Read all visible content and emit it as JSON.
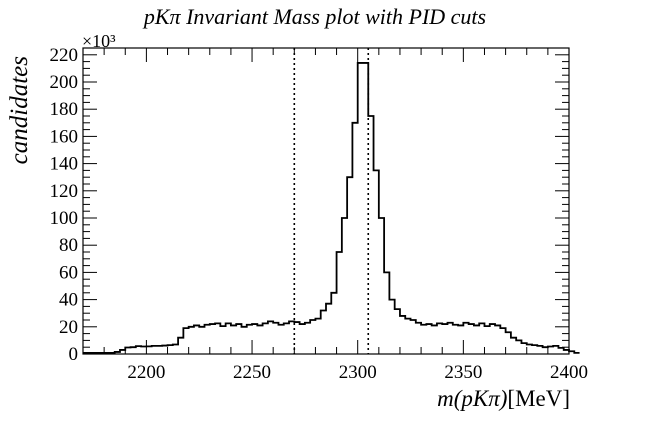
{
  "chart_data": {
    "type": "histogram",
    "title": "pKπ Invariant Mass plot with PID cuts",
    "xlabel": "m(pKπ)[MeV]",
    "xlabel_italic_part": "m(pKπ)",
    "xlabel_unit_part": "[MeV]",
    "ylabel": "candidates",
    "y_multiplier": "×10³",
    "xlim": [
      2170,
      2400
    ],
    "ylim": [
      0,
      225
    ],
    "x_ticks": [
      2200,
      2250,
      2300,
      2350,
      2400
    ],
    "y_ticks": [
      0,
      20,
      40,
      60,
      80,
      100,
      120,
      140,
      160,
      180,
      200,
      220
    ],
    "cut_lines": [
      2270,
      2305
    ],
    "bin_edges_start": 2170,
    "bin_width": 2.5,
    "values": [
      0.8,
      0.8,
      0.8,
      0.8,
      0.8,
      0.8,
      1.5,
      3.0,
      4.8,
      5.0,
      5.8,
      5.5,
      5.6,
      6.0,
      6.0,
      6.2,
      6.5,
      7.0,
      12.0,
      19.0,
      20.0,
      21.0,
      20.0,
      21.5,
      22.0,
      22.5,
      20.5,
      22.5,
      21.0,
      22.0,
      20.0,
      21.5,
      22.0,
      21.0,
      22.5,
      24.0,
      23.0,
      21.5,
      22.5,
      24.0,
      23.5,
      22.0,
      23.0,
      25.0,
      26.0,
      32.0,
      37.0,
      45.0,
      75.0,
      100.0,
      130.0,
      170.0,
      214.0,
      214.0,
      175.0,
      135.0,
      100.0,
      60.0,
      40.0,
      33.0,
      28.0,
      26.0,
      25.0,
      23.0,
      21.5,
      22.0,
      21.0,
      22.5,
      22.0,
      23.0,
      21.5,
      21.0,
      23.0,
      22.0,
      21.0,
      22.5,
      20.5,
      22.0,
      21.0,
      19.0,
      16.0,
      12.0,
      10.0,
      8.0,
      7.0,
      6.5,
      6.0,
      5.0,
      5.5,
      6.0,
      4.5,
      3.0,
      2.0,
      0.8
    ]
  }
}
